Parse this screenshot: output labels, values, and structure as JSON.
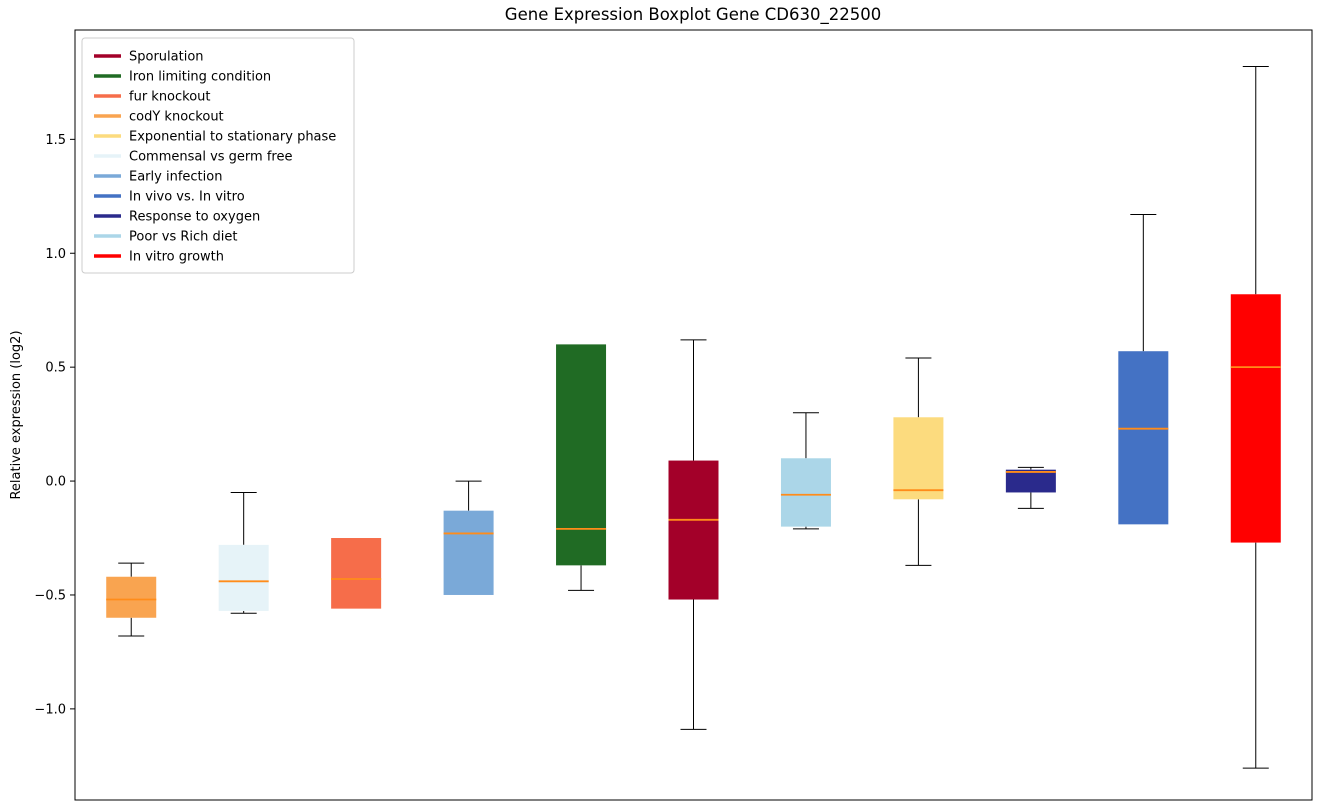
{
  "window": {
    "background": "#ffffff"
  },
  "chart_data": {
    "type": "boxplot",
    "title": "Gene Expression Boxplot Gene CD630_22500",
    "xlabel": "",
    "ylabel": "Relative expression (log2)",
    "ylim": [
      -1.4,
      1.98
    ],
    "grid": false,
    "legend_position": "upper left",
    "colors": {
      "median": "#ff8c1a",
      "whisker": "#000000",
      "axes_edge": "#000000",
      "legend_border": "#cccccc",
      "text": "#000000",
      "background": "#ffffff"
    },
    "yticks": [
      {
        "value": -1.0,
        "label": "−1.0"
      },
      {
        "value": -0.5,
        "label": "−0.5"
      },
      {
        "value": 0.0,
        "label": "0.0"
      },
      {
        "value": 0.5,
        "label": "0.5"
      },
      {
        "value": 1.0,
        "label": "1.0"
      },
      {
        "value": 1.5,
        "label": "1.5"
      }
    ],
    "legend": [
      {
        "label": "Sporulation",
        "color": "#a30029"
      },
      {
        "label": "Iron limiting condition",
        "color": "#206b24"
      },
      {
        "label": "fur knockout",
        "color": "#f66d4a"
      },
      {
        "label": "codY knockout",
        "color": "#f9a450"
      },
      {
        "label": "Exponential to stationary phase",
        "color": "#fcdb7e"
      },
      {
        "label": "Commensal vs germ free",
        "color": "#e6f3f8"
      },
      {
        "label": "Early infection",
        "color": "#7aa9d8"
      },
      {
        "label": "In vivo vs. In vitro",
        "color": "#4472c4"
      },
      {
        "label": "Response to oxygen",
        "color": "#2a2a8c"
      },
      {
        "label": "Poor vs Rich diet",
        "color": "#abd6e8"
      },
      {
        "label": "In vitro growth",
        "color": "#ff0000"
      }
    ],
    "boxes": [
      {
        "condition": "codY knockout",
        "color": "#f9a450",
        "whislo": -0.68,
        "q1": -0.6,
        "med": -0.52,
        "q3": -0.42,
        "whishi": -0.36
      },
      {
        "condition": "Commensal vs germ free",
        "color": "#e6f3f8",
        "whislo": -0.58,
        "q1": -0.57,
        "med": -0.44,
        "q3": -0.28,
        "whishi": -0.05
      },
      {
        "condition": "fur knockout",
        "color": "#f66d4a",
        "whislo": -0.56,
        "q1": -0.56,
        "med": -0.43,
        "q3": -0.25,
        "whishi": -0.25
      },
      {
        "condition": "Early infection",
        "color": "#7aa9d8",
        "whislo": -0.5,
        "q1": -0.5,
        "med": -0.23,
        "q3": -0.13,
        "whishi": 0.0
      },
      {
        "condition": "Iron limiting condition",
        "color": "#206b24",
        "whislo": -0.48,
        "q1": -0.37,
        "med": -0.21,
        "q3": 0.6,
        "whishi": 0.6
      },
      {
        "condition": "Sporulation",
        "color": "#a30029",
        "whislo": -1.09,
        "q1": -0.52,
        "med": -0.17,
        "q3": 0.09,
        "whishi": 0.62
      },
      {
        "condition": "Poor vs Rich diet",
        "color": "#abd6e8",
        "whislo": -0.21,
        "q1": -0.2,
        "med": -0.06,
        "q3": 0.1,
        "whishi": 0.3
      },
      {
        "condition": "Exponential to stationary phase",
        "color": "#fcdb7e",
        "whislo": -0.37,
        "q1": -0.08,
        "med": -0.04,
        "q3": 0.28,
        "whishi": 0.54
      },
      {
        "condition": "Response to oxygen",
        "color": "#2a2a8c",
        "whislo": -0.12,
        "q1": -0.05,
        "med": 0.04,
        "q3": 0.05,
        "whishi": 0.06
      },
      {
        "condition": "In vivo vs. In vitro",
        "color": "#4472c4",
        "whislo": -0.19,
        "q1": -0.19,
        "med": 0.23,
        "q3": 0.57,
        "whishi": 1.17
      },
      {
        "condition": "In vitro growth",
        "color": "#ff0000",
        "whislo": -1.26,
        "q1": -0.27,
        "med": 0.5,
        "q3": 0.82,
        "whishi": 1.82
      }
    ]
  }
}
